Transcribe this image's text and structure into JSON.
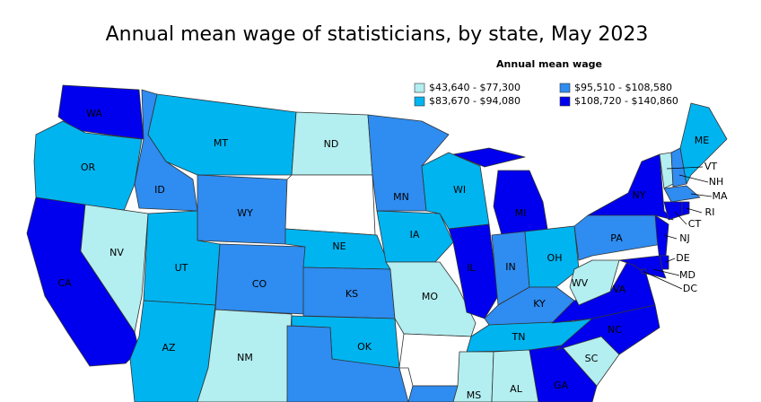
{
  "title": "Annual mean wage of statisticians, by state, May 2023",
  "legend": {
    "title": "Annual mean wage",
    "items": [
      {
        "label": "$43,640 - $77,300",
        "color": "#b3eef0"
      },
      {
        "label": "$83,670 - $94,080",
        "color": "#00b4f0"
      },
      {
        "label": "$95,510 - $108,580",
        "color": "#2f8cf0"
      },
      {
        "label": "$108,720 - $140,860",
        "color": "#0000ee"
      }
    ]
  },
  "no_data_color": "#ffffff",
  "states": [
    {
      "label": "WA",
      "class": 3
    },
    {
      "label": "OR",
      "class": 1
    },
    {
      "label": "CA",
      "class": 3
    },
    {
      "label": "NV",
      "class": 0
    },
    {
      "label": "ID",
      "class": 2
    },
    {
      "label": "MT",
      "class": 1
    },
    {
      "label": "WY",
      "class": 2
    },
    {
      "label": "UT",
      "class": 1
    },
    {
      "label": "CO",
      "class": 2
    },
    {
      "label": "AZ",
      "class": 1
    },
    {
      "label": "NM",
      "class": 0
    },
    {
      "label": "ND",
      "class": 0
    },
    {
      "label": null,
      "class": null
    },
    {
      "label": "NE",
      "class": 1
    },
    {
      "label": "KS",
      "class": 2
    },
    {
      "label": "OK",
      "class": 1
    },
    {
      "label": null,
      "class": 2
    },
    {
      "label": "MN",
      "class": 2
    },
    {
      "label": "IA",
      "class": 1
    },
    {
      "label": "MO",
      "class": 0
    },
    {
      "label": null,
      "class": null
    },
    {
      "label": null,
      "class": 2
    },
    {
      "label": "WI",
      "class": 1
    },
    {
      "label": "IL",
      "class": 3
    },
    {
      "label": "MI",
      "class": 3
    },
    {
      "label": "IN",
      "class": 2
    },
    {
      "label": "OH",
      "class": 1
    },
    {
      "label": "KY",
      "class": 2
    },
    {
      "label": "TN",
      "class": 1
    },
    {
      "label": "MS",
      "class": 0
    },
    {
      "label": "AL",
      "class": 0
    },
    {
      "label": "GA",
      "class": 3
    },
    {
      "label": "SC",
      "class": 0
    },
    {
      "label": "NC",
      "class": 3
    },
    {
      "label": "VA",
      "class": 3
    },
    {
      "label": "WV",
      "class": 0
    },
    {
      "label": "PA",
      "class": 2
    },
    {
      "label": "NY",
      "class": 3
    },
    {
      "label": "NJ",
      "class": 3
    },
    {
      "label": "DE",
      "class": 3
    },
    {
      "label": "MD",
      "class": 3
    },
    {
      "label": "DC",
      "class": 3
    },
    {
      "label": "VT",
      "class": 0
    },
    {
      "label": "NH",
      "class": 2
    },
    {
      "label": "ME",
      "class": 1
    },
    {
      "label": "MA",
      "class": 2
    },
    {
      "label": "CT",
      "class": 3
    },
    {
      "label": "RI",
      "class": 3
    }
  ]
}
